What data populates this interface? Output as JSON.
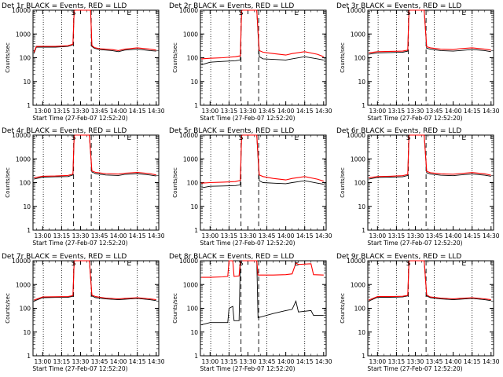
{
  "figure": {
    "series_colors": {
      "events": "#000000",
      "lld": "#ff0000"
    },
    "background": "#ffffff"
  },
  "chart_data": [
    {
      "type": "line",
      "title": "Det 1r BLACK = Events, RED = LLD",
      "xlabel": "Start Time (27-Feb-07 12:52:20)",
      "ylabel": "Counts/sec",
      "x_ticks": [
        "13:00",
        "13:15",
        "13:30",
        "13:45",
        "14:00",
        "14:15",
        "14:30"
      ],
      "y_ticks": [
        "1",
        "10",
        "100",
        "1000",
        "10000"
      ],
      "y_scale": "log",
      "ylim": [
        1,
        10000
      ],
      "markers": [
        "S",
        "E"
      ],
      "series": [
        {
          "name": "Events",
          "color": "#000000",
          "x": [
            "12:53",
            "12:55",
            "13:00",
            "13:10",
            "13:20",
            "13:24",
            "13:25",
            "13:27",
            "13:38",
            "13:39",
            "13:41",
            "13:45",
            "13:55",
            "14:00",
            "14:05",
            "14:15",
            "14:25",
            "14:30"
          ],
          "y": [
            150,
            280,
            280,
            280,
            300,
            350,
            10000,
            10000,
            10000,
            300,
            250,
            220,
            200,
            180,
            210,
            230,
            200,
            190
          ]
        },
        {
          "name": "LLD",
          "color": "#ff0000",
          "x": [
            "12:53",
            "12:55",
            "13:00",
            "13:10",
            "13:20",
            "13:24",
            "13:25",
            "13:27",
            "13:38",
            "13:39",
            "13:41",
            "13:45",
            "13:55",
            "14:00",
            "14:05",
            "14:15",
            "14:25",
            "14:30"
          ],
          "y": [
            170,
            300,
            300,
            300,
            320,
            370,
            10000,
            10000,
            10000,
            330,
            270,
            240,
            220,
            200,
            230,
            260,
            230,
            210
          ]
        }
      ]
    },
    {
      "type": "line",
      "title": "Det 2r BLACK = Events, RED = LLD",
      "xlabel": "Start Time (27-Feb-07 12:52:20)",
      "ylabel": "Counts/sec",
      "x_ticks": [
        "13:00",
        "13:15",
        "13:30",
        "13:45",
        "14:00",
        "14:15",
        "14:30"
      ],
      "y_ticks": [
        "1",
        "10",
        "100",
        "1000",
        "10000"
      ],
      "y_scale": "log",
      "ylim": [
        1,
        10000
      ],
      "markers": [
        "S",
        "E"
      ],
      "series": [
        {
          "name": "Events",
          "color": "#000000",
          "x": [
            "12:53",
            "13:00",
            "13:10",
            "13:20",
            "13:24",
            "13:25",
            "13:28",
            "13:37",
            "13:39",
            "13:42",
            "13:50",
            "14:00",
            "14:05",
            "14:15",
            "14:25",
            "14:30"
          ],
          "y": [
            50,
            65,
            70,
            75,
            80,
            10000,
            10000,
            10000,
            110,
            90,
            85,
            80,
            90,
            110,
            90,
            80
          ]
        },
        {
          "name": "LLD",
          "color": "#ff0000",
          "x": [
            "12:53",
            "13:00",
            "13:10",
            "13:20",
            "13:24",
            "13:25",
            "13:28",
            "13:37",
            "13:39",
            "13:42",
            "13:50",
            "14:00",
            "14:05",
            "14:15",
            "14:25",
            "14:30"
          ],
          "y": [
            90,
            95,
            100,
            110,
            120,
            10000,
            10000,
            10000,
            200,
            170,
            150,
            130,
            150,
            180,
            140,
            110
          ]
        }
      ]
    },
    {
      "type": "line",
      "title": "Det 3r BLACK = Events, RED = LLD",
      "xlabel": "Start Time (27-Feb-07 12:52:20)",
      "ylabel": "Counts/sec",
      "x_ticks": [
        "13:00",
        "13:15",
        "13:30",
        "13:45",
        "14:00",
        "14:15",
        "14:30"
      ],
      "y_ticks": [
        "1",
        "10",
        "100",
        "1000",
        "10000"
      ],
      "y_scale": "log",
      "ylim": [
        1,
        10000
      ],
      "markers": [
        "S",
        "E"
      ],
      "series": [
        {
          "name": "Events",
          "color": "#000000",
          "x": [
            "12:53",
            "13:00",
            "13:10",
            "13:20",
            "13:24",
            "13:25",
            "13:28",
            "13:37",
            "13:39",
            "13:42",
            "13:50",
            "14:00",
            "14:05",
            "14:15",
            "14:25",
            "14:30"
          ],
          "y": [
            140,
            160,
            165,
            170,
            190,
            10000,
            10000,
            10000,
            250,
            230,
            200,
            190,
            200,
            220,
            200,
            180
          ]
        },
        {
          "name": "LLD",
          "color": "#ff0000",
          "x": [
            "12:53",
            "13:00",
            "13:10",
            "13:20",
            "13:24",
            "13:25",
            "13:28",
            "13:37",
            "13:39",
            "13:42",
            "13:50",
            "14:00",
            "14:05",
            "14:15",
            "14:25",
            "14:30"
          ],
          "y": [
            160,
            180,
            185,
            190,
            210,
            10000,
            10000,
            10000,
            290,
            260,
            230,
            220,
            240,
            260,
            230,
            210
          ]
        }
      ]
    },
    {
      "type": "line",
      "title": "Det 4r BLACK = Events, RED = LLD",
      "xlabel": "Start Time (27-Feb-07 12:52:20)",
      "ylabel": "Counts/sec",
      "x_ticks": [
        "13:00",
        "13:15",
        "13:30",
        "13:45",
        "14:00",
        "14:15",
        "14:30"
      ],
      "y_ticks": [
        "1",
        "10",
        "100",
        "1000",
        "10000"
      ],
      "y_scale": "log",
      "ylim": [
        1,
        10000
      ],
      "markers": [
        "S",
        "E"
      ],
      "series": [
        {
          "name": "Events",
          "color": "#000000",
          "x": [
            "12:53",
            "13:00",
            "13:10",
            "13:20",
            "13:24",
            "13:25",
            "13:28",
            "13:37",
            "13:39",
            "13:42",
            "13:50",
            "14:00",
            "14:05",
            "14:15",
            "14:25",
            "14:30"
          ],
          "y": [
            140,
            170,
            175,
            180,
            210,
            10000,
            10000,
            10000,
            280,
            240,
            210,
            200,
            220,
            240,
            210,
            190
          ]
        },
        {
          "name": "LLD",
          "color": "#ff0000",
          "x": [
            "12:53",
            "13:00",
            "13:10",
            "13:20",
            "13:24",
            "13:25",
            "13:28",
            "13:37",
            "13:39",
            "13:42",
            "13:50",
            "14:00",
            "14:05",
            "14:15",
            "14:25",
            "14:30"
          ],
          "y": [
            160,
            185,
            190,
            200,
            230,
            10000,
            10000,
            10000,
            310,
            270,
            240,
            230,
            250,
            270,
            240,
            210
          ]
        }
      ]
    },
    {
      "type": "line",
      "title": "Det 5r BLACK = Events, RED = LLD",
      "xlabel": "Start Time (27-Feb-07 12:52:20)",
      "ylabel": "Counts/sec",
      "x_ticks": [
        "13:00",
        "13:15",
        "13:30",
        "13:45",
        "14:00",
        "14:15",
        "14:30"
      ],
      "y_ticks": [
        "1",
        "10",
        "100",
        "1000",
        "10000"
      ],
      "y_scale": "log",
      "ylim": [
        1,
        10000
      ],
      "markers": [
        "S",
        "E"
      ],
      "series": [
        {
          "name": "Events",
          "color": "#000000",
          "x": [
            "12:53",
            "13:00",
            "13:10",
            "13:20",
            "13:24",
            "13:25",
            "13:28",
            "13:37",
            "13:39",
            "13:42",
            "13:50",
            "14:00",
            "14:05",
            "14:15",
            "14:25",
            "14:30"
          ],
          "y": [
            60,
            70,
            72,
            75,
            80,
            10000,
            10000,
            10000,
            120,
            100,
            95,
            90,
            100,
            120,
            95,
            85
          ]
        },
        {
          "name": "LLD",
          "color": "#ff0000",
          "x": [
            "12:53",
            "13:00",
            "13:10",
            "13:20",
            "13:24",
            "13:25",
            "13:28",
            "13:37",
            "13:39",
            "13:42",
            "13:50",
            "14:00",
            "14:05",
            "14:15",
            "14:25",
            "14:30"
          ],
          "y": [
            95,
            100,
            105,
            110,
            125,
            10000,
            10000,
            10000,
            210,
            180,
            150,
            130,
            150,
            180,
            140,
            115
          ]
        }
      ]
    },
    {
      "type": "line",
      "title": "Det 6r BLACK = Events, RED = LLD",
      "xlabel": "Start Time (27-Feb-07 12:52:20)",
      "ylabel": "Counts/sec",
      "x_ticks": [
        "13:00",
        "13:15",
        "13:30",
        "13:45",
        "14:00",
        "14:15",
        "14:30"
      ],
      "y_ticks": [
        "1",
        "10",
        "100",
        "1000",
        "10000"
      ],
      "y_scale": "log",
      "ylim": [
        1,
        10000
      ],
      "markers": [
        "S",
        "E"
      ],
      "series": [
        {
          "name": "Events",
          "color": "#000000",
          "x": [
            "12:53",
            "13:00",
            "13:10",
            "13:20",
            "13:24",
            "13:25",
            "13:28",
            "13:37",
            "13:39",
            "13:42",
            "13:50",
            "14:00",
            "14:05",
            "14:15",
            "14:25",
            "14:30"
          ],
          "y": [
            140,
            165,
            170,
            175,
            200,
            10000,
            10000,
            10000,
            260,
            230,
            205,
            195,
            210,
            230,
            205,
            185
          ]
        },
        {
          "name": "LLD",
          "color": "#ff0000",
          "x": [
            "12:53",
            "13:00",
            "13:10",
            "13:20",
            "13:24",
            "13:25",
            "13:28",
            "13:37",
            "13:39",
            "13:42",
            "13:50",
            "14:00",
            "14:05",
            "14:15",
            "14:25",
            "14:30"
          ],
          "y": [
            160,
            180,
            185,
            195,
            220,
            10000,
            10000,
            10000,
            300,
            260,
            235,
            225,
            240,
            265,
            235,
            205
          ]
        }
      ]
    },
    {
      "type": "line",
      "title": "Det 7r BLACK = Events, RED = LLD",
      "xlabel": "Start Time (27-Feb-07 12:52:20)",
      "ylabel": "Counts/sec",
      "x_ticks": [
        "13:00",
        "13:15",
        "13:30",
        "13:45",
        "14:00",
        "14:15",
        "14:30"
      ],
      "y_ticks": [
        "1",
        "10",
        "100",
        "1000",
        "10000"
      ],
      "y_scale": "log",
      "ylim": [
        1,
        10000
      ],
      "markers": [
        "S",
        "E"
      ],
      "series": [
        {
          "name": "Events",
          "color": "#000000",
          "x": [
            "12:53",
            "13:00",
            "13:10",
            "13:20",
            "13:24",
            "13:25",
            "13:28",
            "13:37",
            "13:39",
            "13:42",
            "13:50",
            "14:00",
            "14:05",
            "14:15",
            "14:25",
            "14:30"
          ],
          "y": [
            200,
            280,
            285,
            290,
            320,
            10000,
            10000,
            10000,
            330,
            280,
            250,
            230,
            240,
            260,
            230,
            210
          ]
        },
        {
          "name": "LLD",
          "color": "#ff0000",
          "x": [
            "12:53",
            "13:00",
            "13:10",
            "13:20",
            "13:24",
            "13:25",
            "13:28",
            "13:37",
            "13:39",
            "13:42",
            "13:50",
            "14:00",
            "14:05",
            "14:15",
            "14:25",
            "14:30"
          ],
          "y": [
            220,
            300,
            305,
            310,
            340,
            10000,
            10000,
            10000,
            360,
            310,
            270,
            250,
            260,
            280,
            250,
            230
          ]
        }
      ]
    },
    {
      "type": "line",
      "title": "Det 8r BLACK = Events, RED = LLD",
      "xlabel": "Start Time (27-Feb-07 12:52:20)",
      "ylabel": "Counts/sec",
      "x_ticks": [
        "13:00",
        "13:15",
        "13:30",
        "13:45",
        "14:00",
        "14:15",
        "14:30"
      ],
      "y_ticks": [
        "1",
        "10",
        "100",
        "1000",
        "10000"
      ],
      "y_scale": "log",
      "ylim": [
        1,
        10000
      ],
      "markers": [
        "S",
        "E"
      ],
      "series": [
        {
          "name": "Events",
          "color": "#000000",
          "x": [
            "12:53",
            "13:00",
            "13:10",
            "13:14",
            "13:15",
            "13:18",
            "13:19",
            "13:23",
            "13:24",
            "13:28",
            "13:37",
            "13:38",
            "13:50",
            "14:00",
            "14:05",
            "14:08",
            "14:10",
            "14:20",
            "14:22",
            "14:30"
          ],
          "y": [
            20,
            25,
            25,
            25,
            100,
            120,
            30,
            30,
            10000,
            10000,
            10000,
            40,
            60,
            80,
            90,
            200,
            70,
            80,
            50,
            50
          ]
        },
        {
          "name": "LLD",
          "color": "#ff0000",
          "x": [
            "12:53",
            "13:00",
            "13:10",
            "13:14",
            "13:15",
            "13:18",
            "13:19",
            "13:23",
            "13:24",
            "13:28",
            "13:37",
            "13:38",
            "13:50",
            "14:00",
            "14:05",
            "14:08",
            "14:10",
            "14:20",
            "14:22",
            "14:30"
          ],
          "y": [
            2000,
            2000,
            2100,
            2200,
            10000,
            10000,
            2200,
            2300,
            10000,
            10000,
            10000,
            2500,
            2500,
            2600,
            2800,
            8000,
            7000,
            7500,
            2600,
            2500
          ]
        }
      ]
    },
    {
      "type": "line",
      "title": "Det 9r BLACK = Events, RED = LLD",
      "xlabel": "Start Time (27-Feb-07 12:52:20)",
      "ylabel": "Counts/sec",
      "x_ticks": [
        "13:00",
        "13:15",
        "13:30",
        "13:45",
        "14:00",
        "14:15",
        "14:30"
      ],
      "y_ticks": [
        "1",
        "10",
        "100",
        "1000",
        "10000"
      ],
      "y_scale": "log",
      "ylim": [
        1,
        10000
      ],
      "markers": [
        "S",
        "E"
      ],
      "series": [
        {
          "name": "Events",
          "color": "#000000",
          "x": [
            "12:53",
            "13:00",
            "13:10",
            "13:20",
            "13:24",
            "13:25",
            "13:28",
            "13:37",
            "13:39",
            "13:42",
            "13:50",
            "14:00",
            "14:05",
            "14:15",
            "14:25",
            "14:30"
          ],
          "y": [
            200,
            290,
            290,
            300,
            330,
            10000,
            10000,
            10000,
            330,
            280,
            250,
            230,
            240,
            260,
            230,
            210
          ]
        },
        {
          "name": "LLD",
          "color": "#ff0000",
          "x": [
            "12:53",
            "13:00",
            "13:10",
            "13:20",
            "13:24",
            "13:25",
            "13:28",
            "13:37",
            "13:39",
            "13:42",
            "13:50",
            "14:00",
            "14:05",
            "14:15",
            "14:25",
            "14:30"
          ],
          "y": [
            220,
            310,
            310,
            320,
            350,
            10000,
            10000,
            10000,
            360,
            300,
            270,
            250,
            260,
            280,
            250,
            230
          ]
        }
      ]
    }
  ]
}
